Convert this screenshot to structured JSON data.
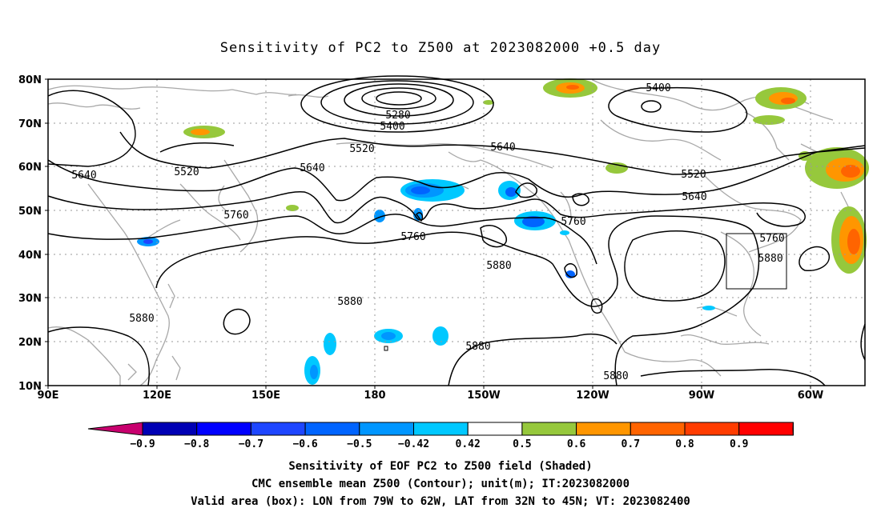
{
  "title": "Sensitivity of PC2 to Z500 at 2023082000 +0.5 day",
  "lat_labels": [
    "80N",
    "70N",
    "60N",
    "50N",
    "40N",
    "30N",
    "20N",
    "10N"
  ],
  "lon_labels": [
    "90E",
    "120E",
    "150E",
    "180",
    "150W",
    "120W",
    "90W",
    "60W"
  ],
  "contour_labels": {
    "c5280": "5280",
    "c5400a": "5400",
    "c5400b": "5400",
    "c5520a": "5520",
    "c5520b": "5520",
    "c5520c": "5520",
    "c5640a": "5640",
    "c5640b": "5640",
    "c5640c": "5640",
    "c5640d": "5640",
    "c5760a": "5760",
    "c5760b": "5760",
    "c5760c": "5760",
    "c5760d": "5760",
    "c5880a": "5880",
    "c5880b": "5880",
    "c5880c": "5880",
    "c5880d": "5880",
    "c5880e": "5880",
    "c5880f": "5880"
  },
  "colorbar": {
    "ticks": [
      "-0.9",
      "-0.8",
      "-0.7",
      "-0.6",
      "-0.5",
      "-0.42",
      "0.42",
      "0.5",
      "0.6",
      "0.7",
      "0.8",
      "0.9"
    ],
    "colors": [
      "#c8006e",
      "#0000b4",
      "#0000ff",
      "#1e46ff",
      "#0064ff",
      "#0096ff",
      "#00c8ff",
      "#ffffff",
      "#96c83c",
      "#ff9600",
      "#ff6400",
      "#ff3c00",
      "#ff0000",
      "#ff96c8"
    ]
  },
  "caption": {
    "line1": "Sensitivity of EOF PC2 to Z500 field (Shaded)",
    "line2": "CMC ensemble mean Z500 (Contour); unit(m); IT:2023082000",
    "line3": "Valid area (box): LON from 79W to 62W, LAT from 32N to 45N; VT: 2023082400"
  }
}
